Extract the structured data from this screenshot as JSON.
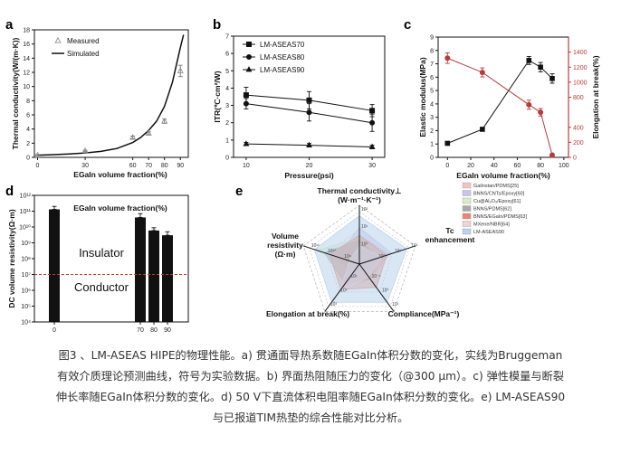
{
  "caption": {
    "lines": [
      "图3 、LM-ASEAS HIPE的物理性能。a) 贯通面导热系数随EGaIn体积分数的变化，实线为Bruggeman",
      "有效介质理论预测曲线，符号为实验数据。b) 界面热阻随压力的变化（@300 μm）。c) 弹性模量与断裂",
      "伸长率随EGaIn体积分数的变化。d) 50 V下直流体积电阻率随EGaIn体积分数的变化。e) LM-ASEAS90",
      "与已报道TIM热垫的综合性能对比分析。"
    ]
  },
  "chart_data": [
    {
      "panel": "a",
      "type": "scatter",
      "xlabel": "EGaIn volume fraction(%)",
      "ylabel": "Thermal conductivity(W/(m·K))",
      "xticks": [
        0,
        30,
        60,
        70,
        80,
        90
      ],
      "yticks": [
        0,
        2,
        4,
        6,
        8,
        10,
        12,
        14,
        16,
        18
      ],
      "xlim": [
        -2,
        95
      ],
      "ylim": [
        0,
        18
      ],
      "series": [
        {
          "name": "Measured",
          "x": [
            0,
            30,
            60,
            70,
            80,
            90
          ],
          "y": [
            0.3,
            0.9,
            2.8,
            3.4,
            5.1,
            12.2
          ],
          "err": [
            0.1,
            0.1,
            0.2,
            0.2,
            0.3,
            0.8
          ],
          "color": "#888888"
        },
        {
          "name": "Simulated",
          "x": [
            0,
            10,
            20,
            30,
            40,
            50,
            60,
            65,
            70,
            75,
            80,
            85,
            90,
            92
          ],
          "y": [
            0.3,
            0.38,
            0.48,
            0.62,
            0.85,
            1.25,
            2.1,
            2.8,
            3.8,
            5.1,
            7.2,
            10.6,
            15.5,
            17.3
          ],
          "color": "#111111"
        }
      ]
    },
    {
      "panel": "b",
      "type": "line",
      "xlabel": "Pressure(psi)",
      "ylabel": "ITR(℃·cm²/W)",
      "xticks": [
        10,
        20,
        30
      ],
      "yticks": [
        0,
        1,
        2,
        3,
        4,
        5,
        6,
        7
      ],
      "xlim": [
        8,
        32
      ],
      "ylim": [
        0,
        7
      ],
      "series": [
        {
          "name": "LM-ASEAS70",
          "marker": "square",
          "x": [
            10,
            20,
            30
          ],
          "y": [
            3.6,
            3.3,
            2.7
          ],
          "err": [
            0.45,
            0.5,
            0.35
          ]
        },
        {
          "name": "LM-ASEAS80",
          "marker": "circle",
          "x": [
            10,
            20,
            30
          ],
          "y": [
            3.1,
            2.6,
            2.0
          ],
          "err": [
            0.3,
            0.5,
            0.5
          ]
        },
        {
          "name": "LM-ASEAS90",
          "marker": "triangle",
          "x": [
            10,
            20,
            30
          ],
          "y": [
            0.78,
            0.7,
            0.6
          ],
          "err": [
            0.08,
            0.1,
            0.1
          ]
        }
      ]
    },
    {
      "panel": "c",
      "type": "line",
      "xlabel": "EGaIn volume fraction(%)",
      "ylabel": "Elastic modulus(MPa)",
      "y2label": "Elongation at break(%)",
      "xticks": [
        0,
        20,
        40,
        60,
        80,
        100
      ],
      "yticks": [
        0,
        1,
        2,
        3,
        4,
        5,
        6,
        7,
        8,
        9
      ],
      "y2ticks": [
        0,
        200,
        400,
        800,
        1000,
        1200,
        1400
      ],
      "xlim": [
        -8,
        104
      ],
      "ylim": [
        0,
        9
      ],
      "y2lim": [
        0,
        1600
      ],
      "series": [
        {
          "name": "Elastic modulus",
          "axis": "left",
          "color": "#111111",
          "x": [
            0,
            30,
            70,
            80,
            90
          ],
          "y": [
            1.05,
            2.1,
            7.25,
            6.75,
            5.9
          ],
          "err": [
            0.08,
            0.1,
            0.3,
            0.35,
            0.35
          ]
        },
        {
          "name": "Elongation at break",
          "axis": "right",
          "color": "#b53c3c",
          "x": [
            0,
            30,
            70,
            80,
            90
          ],
          "y": [
            1320,
            1130,
            700,
            600,
            30
          ],
          "err": [
            70,
            60,
            60,
            50,
            10
          ]
        }
      ]
    },
    {
      "panel": "d",
      "type": "bar",
      "xlabel": "EGaIn volume fraction(%)",
      "ylabel": "DC volume resistivity(Ω·m)",
      "scale": "log",
      "categories": [
        "0",
        "70",
        "80",
        "90"
      ],
      "values": [
        130000000000.0,
        40000000000.0,
        6000000000.0,
        3000000000.0
      ],
      "err_high": [
        200000000000.0,
        70000000000.0,
        9000000000.0,
        5000000000.0
      ],
      "yticks": [
        "10⁴",
        "10⁵",
        "10⁶",
        "10⁷",
        "10⁸",
        "10⁹",
        "10¹⁰",
        "10¹¹",
        "10¹²"
      ],
      "ylim_exp": [
        4,
        12
      ],
      "threshold": 10000000.0,
      "annotations": [
        "Insulator",
        "Conductor"
      ]
    },
    {
      "panel": "e",
      "type": "radar",
      "axes": [
        {
          "line1": "Thermal conductivity⊥",
          "line2": "(W·m⁻¹·K⁻¹)"
        },
        {
          "line1": "Tc",
          "line2": "enhancement"
        },
        {
          "line1": "Compliance(MPa⁻¹)",
          "line2": ""
        },
        {
          "line1": "Elongation at break(%)",
          "line2": ""
        },
        {
          "line1": "Volume",
          "line2": "resistivity",
          "line3": "(Ω·m)"
        }
      ],
      "axis_ticks": [
        [
          "10²",
          "10¹",
          "10⁰"
        ],
        [
          "10²",
          "10¹",
          "10⁰"
        ],
        [
          "10¹",
          "10⁰",
          "10⁻¹"
        ],
        [
          "10³",
          "10²",
          "10¹"
        ],
        [
          "10¹²",
          "10¹⁰",
          "10⁸"
        ]
      ],
      "series": [
        {
          "name": "Galinstan/PDMS[25]",
          "color": "#f4c2c2",
          "values": [
            0.55,
            0.6,
            0.35,
            0.55,
            0.25
          ]
        },
        {
          "name": "BNNS/CNTs/Epoxy[60]",
          "color": "#c9c5e8",
          "values": [
            0.7,
            0.65,
            0.15,
            0.2,
            0.45
          ]
        },
        {
          "name": "Cu@Al₂O₃/Epoxy[61]",
          "color": "#d9ecc6",
          "values": [
            0.5,
            0.5,
            0.12,
            0.15,
            0.85
          ]
        },
        {
          "name": "BNNS/PDMS[62]",
          "color": "#a9a9a9",
          "values": [
            0.45,
            0.4,
            0.35,
            0.45,
            0.7
          ]
        },
        {
          "name": "BNNS/EGaIn/PDMS[63]",
          "color": "#e8866f",
          "values": [
            0.55,
            0.55,
            0.55,
            0.6,
            0.6
          ]
        },
        {
          "name": "MXene/NBR[64]",
          "color": "#f0d3d3",
          "values": [
            0.35,
            0.45,
            0.3,
            0.65,
            0.2
          ]
        },
        {
          "name": "LM-ASEAS90",
          "color": "#b9d4ec",
          "values": [
            0.92,
            0.95,
            0.9,
            0.9,
            0.9
          ]
        }
      ]
    }
  ]
}
